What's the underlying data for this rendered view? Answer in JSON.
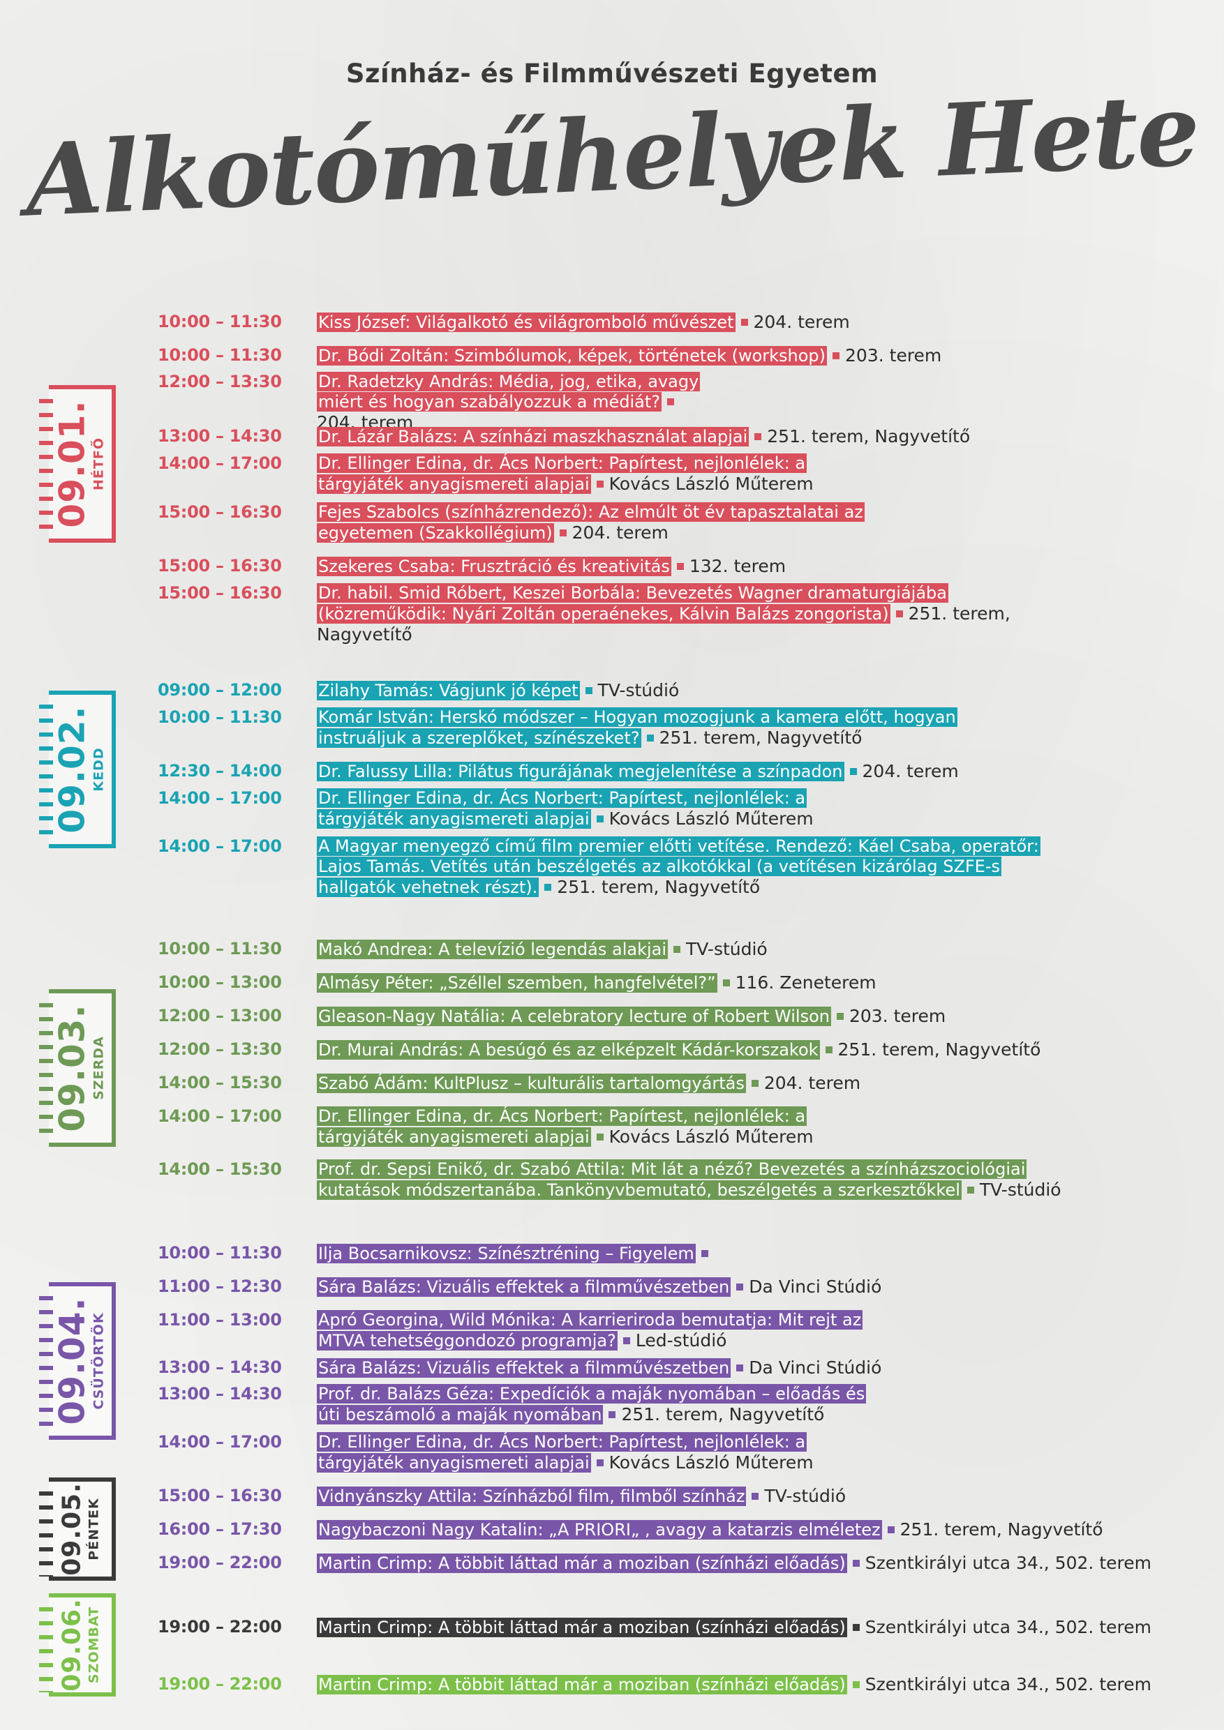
{
  "header": {
    "university": "Színház- és Filmművészeti Egyetem",
    "title": "Alkotóműhelyek Hete"
  },
  "colors": {
    "monday": "#d94f5c",
    "tuesday": "#1aa3b3",
    "wednesday": "#6e9a55",
    "thursday": "#7956a8",
    "friday": "#3a3a3a",
    "saturday": "#7cc04a"
  },
  "days": {
    "mon": {
      "date": "09.01.",
      "name": "HÉTFŐ"
    },
    "tue": {
      "date": "09.02.",
      "name": "KEDD"
    },
    "wed": {
      "date": "09.03.",
      "name": "SZERDA"
    },
    "thu": {
      "date": "09.04.",
      "name": "CSÜTÖRTÖK"
    },
    "fri": {
      "date": "09.05.",
      "name": "PÉNTEK"
    },
    "sat": {
      "date": "09.06.",
      "name": "SZOMBAT"
    }
  },
  "events": [
    {
      "time": "10:00 – 11:30",
      "title": "Kiss József: Világalkotó és világromboló művészet",
      "room": "204. terem"
    },
    {
      "time": "10:00 – 11:30",
      "title": "Dr. Bódi Zoltán: Szimbólumok, képek, történetek (workshop)",
      "room": "203. terem"
    },
    {
      "time": "12:00 – 13:30",
      "title": "Dr. Radetzky András: Média, jog, etika, avagy miért és hogyan szabályozzuk a médiát?",
      "room": "204. terem"
    },
    {
      "time": "13:00 – 14:30",
      "title": "Dr. Lázár Balázs: A színházi maszkhasználat alapjai",
      "room": "251. terem, Nagyvetítő"
    },
    {
      "time": "14:00 – 17:00",
      "title": "Dr. Ellinger Edina, dr. Ács Norbert: Papírtest, nejlonlélek: a tárgyjáték anyagismereti alapjai",
      "room": "Kovács László Műterem"
    },
    {
      "time": "15:00 – 16:30",
      "title": "Fejes Szabolcs (színházrendező): Az elmúlt öt év tapasztalatai az egyetemen (Szakkollégium)",
      "room": "204. terem"
    },
    {
      "time": "15:00 – 16:30",
      "title": "Szekeres Csaba: Frusztráció és kreativitás",
      "room": "132. terem"
    },
    {
      "time": "15:00 – 16:30",
      "title": "Dr. habil. Smid Róbert, Keszei Borbála: Bevezetés Wagner dramaturgiájába (közreműködik: Nyári Zoltán operaénekes, Kálvin Balázs zongorista)",
      "room": "251. terem, Nagyvetítő"
    },
    {
      "time": "09:00 – 12:00",
      "title": "Zilahy Tamás: Vágjunk jó képet",
      "room": "TV-stúdió"
    },
    {
      "time": "10:00 – 11:30",
      "title": "Komár István: Herskó módszer – Hogyan mozogjunk a kamera előtt, hogyan instruáljuk a szereplőket, színészeket?",
      "room": "251. terem, Nagyvetítő"
    },
    {
      "time": "12:30 – 14:00",
      "title": "Dr. Falussy Lilla: Pilátus figurájának megjelenítése a színpadon",
      "room": "204. terem"
    },
    {
      "time": "14:00 – 17:00",
      "title": "Dr. Ellinger Edina, dr. Ács Norbert: Papírtest, nejlonlélek: a tárgyjáték anyagismereti alapjai",
      "room": "Kovács László Műterem"
    },
    {
      "time": "14:00 – 17:00",
      "title": "A Magyar menyegző című film premier előtti vetítése. Rendező: Káel Csaba, operatőr: Lajos Tamás. Vetítés után beszélgetés az alkotókkal (a vetítésen kizárólag SZFE-s hallgatók vehetnek részt).",
      "room": "251. terem, Nagyvetítő"
    },
    {
      "time": "10:00 – 11:30",
      "title": "Makó Andrea: A televízió legendás alakjai",
      "room": "TV-stúdió"
    },
    {
      "time": "10:00 – 13:00",
      "title": "Almásy Péter: „Széllel szemben, hangfelvétel?”",
      "room": "116. Zeneterem"
    },
    {
      "time": "12:00 – 13:00",
      "title": "Gleason-Nagy Natália: A celebratory lecture of Robert Wilson",
      "room": "203. terem"
    },
    {
      "time": "12:00 – 13:30",
      "title": "Dr. Murai András: A besúgó és az elképzelt Kádár-korszakok",
      "room": "251. terem, Nagyvetítő"
    },
    {
      "time": "14:00 – 15:30",
      "title": "Szabó Ádám: KultPlusz – kulturális tartalomgyártás",
      "room": "204. terem"
    },
    {
      "time": "14:00 – 17:00",
      "title": "Dr. Ellinger Edina, dr. Ács Norbert: Papírtest, nejlonlélek: a tárgyjáték anyagismereti alapjai",
      "room": "Kovács László Műterem"
    },
    {
      "time": "14:00 – 15:30",
      "title": "Prof. dr. Sepsi Enikő, dr. Szabó Attila: Mit lát a néző? Bevezetés a színházszociológiai kutatások módszertanába. Tankönyvbemutató, beszélgetés a szerkesztőkkel",
      "room": "TV-stúdió"
    },
    {
      "time": "10:00 – 11:30",
      "title": "Ilja Bocsarnikovsz: Színésztréning – Figyelem",
      "room": ""
    },
    {
      "time": "11:00 – 12:30",
      "title": "Sára Balázs: Vizuális effektek a filmművészetben",
      "room": "Da Vinci Stúdió"
    },
    {
      "time": "11:00 – 13:00",
      "title": "Apró Georgina, Wild Mónika: A karrieriroda bemutatja: Mit rejt az MTVA tehetséggondozó programja?",
      "room": "Led-stúdió"
    },
    {
      "time": "13:00 – 14:30",
      "title": "Sára Balázs: Vizuális effektek a filmművészetben",
      "room": "Da Vinci Stúdió"
    },
    {
      "time": "13:00 – 14:30",
      "title": "Prof. dr. Balázs Géza: Expedíciók a maják nyomában – előadás és úti beszámoló a maják nyomában",
      "room": "251. terem, Nagyvetítő"
    },
    {
      "time": "14:00 – 17:00",
      "title": "Dr. Ellinger Edina, dr. Ács Norbert: Papírtest, nejlonlélek: a tárgyjáték anyagismereti alapjai",
      "room": "Kovács László Műterem"
    },
    {
      "time": "15:00 – 16:30",
      "title": "Vidnyánszky Attila: Színházból film, filmből színház",
      "room": "TV-stúdió"
    },
    {
      "time": "16:00 – 17:30",
      "title": "Nagybaczoni Nagy Katalin: „A PRIORI„ , avagy a katarzis elméletez",
      "room": "251. terem, Nagyvetítő"
    },
    {
      "time": "19:00 – 22:00",
      "title": "Martin Crimp: A többit láttad már a moziban (színházi előadás)",
      "room": "Szentkirályi utca 34., 502. terem"
    },
    {
      "time": "19:00 – 22:00",
      "title": "Martin Crimp: A többit láttad már a moziban (színházi előadás)",
      "room": "Szentkirályi utca 34., 502. terem"
    },
    {
      "time": "19:00 – 22:00",
      "title": "Martin Crimp: A többit láttad már a moziban (színházi előadás)",
      "room": "Szentkirályi utca 34., 502. terem"
    }
  ]
}
